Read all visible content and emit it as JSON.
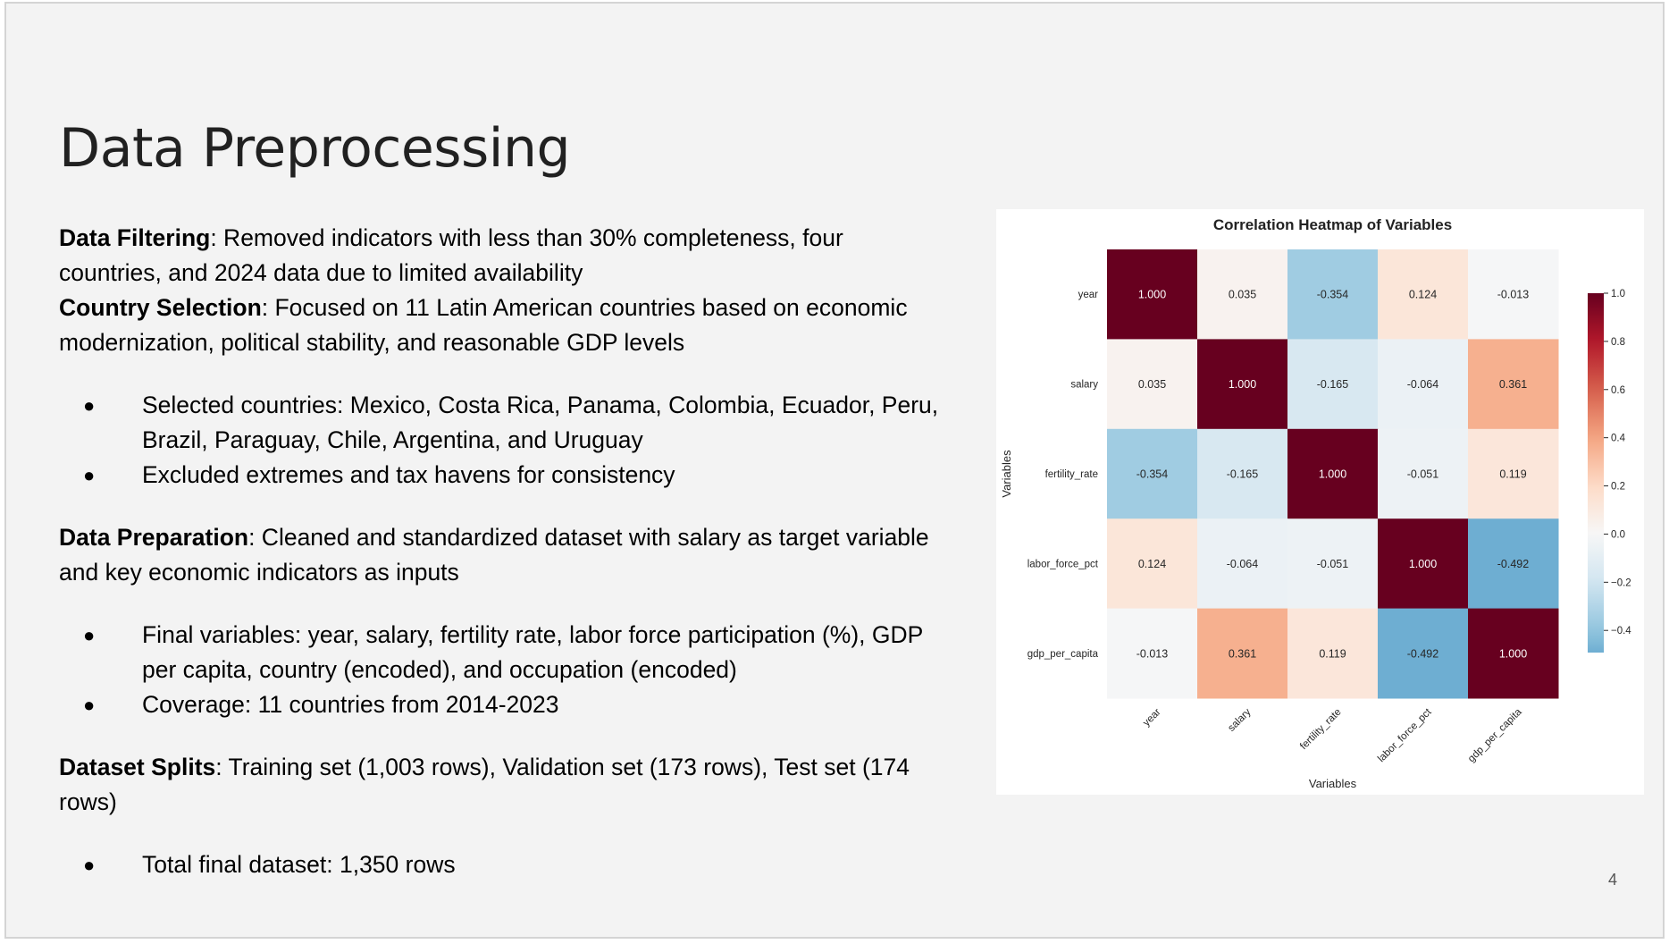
{
  "slide": {
    "title": "Data Preprocessing",
    "page_number": "4"
  },
  "content": {
    "filtering": {
      "label": "Data Filtering",
      "text": ": Removed indicators with less than 30% completeness, four countries, and 2024 data due to limited availability"
    },
    "selection": {
      "label": "Country Selection",
      "text": ": Focused on 11 Latin American countries based on economic modernization, political stability, and reasonable GDP levels"
    },
    "selection_bullets": [
      "Selected countries: Mexico, Costa Rica, Panama, Colombia, Ecuador, Peru, Brazil, Paraguay, Chile, Argentina, and Uruguay",
      "Excluded extremes and tax havens for consistency"
    ],
    "preparation": {
      "label": "Data Preparation",
      "text": ": Cleaned and standardized dataset with salary as target variable and key economic indicators as inputs"
    },
    "preparation_bullets": [
      "Final variables: year, salary, fertility rate, labor force participation (%), GDP per capita, country (encoded), and occupation (encoded)",
      "Coverage: 11 countries from 2014-2023"
    ],
    "splits": {
      "label": "Dataset Splits",
      "text": ": Training set (1,003 rows), Validation set (173 rows), Test set (174 rows)"
    },
    "splits_bullets": [
      "Total final dataset: 1,350 rows"
    ],
    "bullet_glyph": "●"
  },
  "chart_data": {
    "type": "heatmap",
    "title": "Correlation Heatmap of Variables",
    "xlabel": "Variables",
    "ylabel": "Variables",
    "variables": [
      "year",
      "salary",
      "fertility_rate",
      "labor_force_pct",
      "gdp_per_capita"
    ],
    "matrix": [
      [
        1.0,
        0.035,
        -0.354,
        0.124,
        -0.013
      ],
      [
        0.035,
        1.0,
        -0.165,
        -0.064,
        0.361
      ],
      [
        -0.354,
        -0.165,
        1.0,
        -0.051,
        0.119
      ],
      [
        0.124,
        -0.064,
        -0.051,
        1.0,
        -0.492
      ],
      [
        -0.013,
        0.361,
        0.119,
        -0.492,
        1.0
      ]
    ],
    "cell_labels": [
      [
        "1.000",
        "0.035",
        "-0.354",
        "0.124",
        "-0.013"
      ],
      [
        "0.035",
        "1.000",
        "-0.165",
        "-0.064",
        "0.361"
      ],
      [
        "-0.354",
        "-0.165",
        "1.000",
        "-0.051",
        "0.119"
      ],
      [
        "0.124",
        "-0.064",
        "-0.051",
        "1.000",
        "-0.492"
      ],
      [
        "-0.013",
        "0.361",
        "0.119",
        "-0.492",
        "1.000"
      ]
    ],
    "colorbar": {
      "range": [
        -0.492,
        1.0
      ],
      "ticks": [
        1.0,
        0.8,
        0.6,
        0.4,
        0.2,
        0.0,
        -0.2,
        -0.4
      ],
      "tick_labels": [
        "1.0",
        "0.8",
        "0.6",
        "0.4",
        "0.2",
        "0.0",
        "−0.2",
        "−0.4"
      ]
    },
    "colormap": "RdBu_r",
    "colormap_stops": [
      "#053061",
      "#2166ac",
      "#4393c3",
      "#92c5de",
      "#d1e5f0",
      "#f7f7f7",
      "#fddbc7",
      "#f4a582",
      "#d6604d",
      "#b2182b",
      "#67001f"
    ]
  }
}
